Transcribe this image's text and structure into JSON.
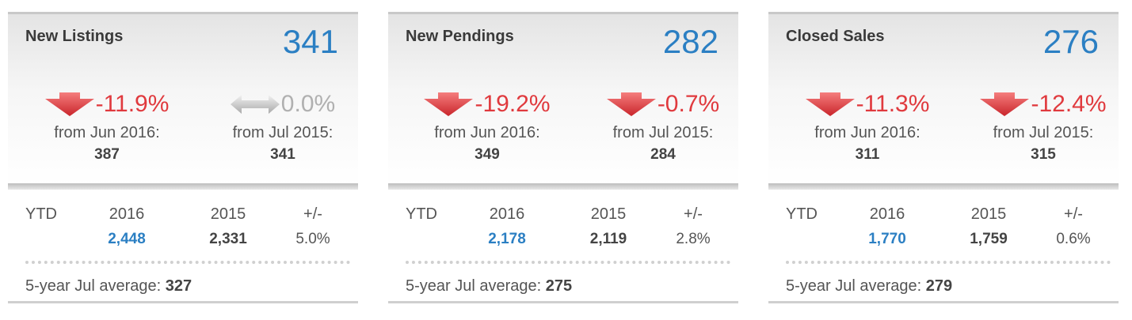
{
  "cards": [
    {
      "title": "New Listings",
      "value": "341",
      "changes": [
        {
          "direction": "down",
          "pct": "-11.9%",
          "label": "from Jun 2016:",
          "value": "387"
        },
        {
          "direction": "flat",
          "pct": "0.0%",
          "label": "from Jul 2015:",
          "value": "341"
        }
      ],
      "ytd": {
        "label": "YTD",
        "headers": [
          "2016",
          "2015",
          "+/-"
        ],
        "values": [
          "2,448",
          "2,331",
          "5.0%"
        ]
      },
      "average": {
        "label": "5-year Jul average:",
        "value": "327"
      }
    },
    {
      "title": "New Pendings",
      "value": "282",
      "changes": [
        {
          "direction": "down",
          "pct": "-19.2%",
          "label": "from Jun 2016:",
          "value": "349"
        },
        {
          "direction": "down",
          "pct": "-0.7%",
          "label": "from Jul 2015:",
          "value": "284"
        }
      ],
      "ytd": {
        "label": "YTD",
        "headers": [
          "2016",
          "2015",
          "+/-"
        ],
        "values": [
          "2,178",
          "2,119",
          "2.8%"
        ]
      },
      "average": {
        "label": "5-year Jul average:",
        "value": "275"
      }
    },
    {
      "title": "Closed Sales",
      "value": "276",
      "changes": [
        {
          "direction": "down",
          "pct": "-11.3%",
          "label": "from Jun 2016:",
          "value": "311"
        },
        {
          "direction": "down",
          "pct": "-12.4%",
          "label": "from Jul 2015:",
          "value": "315"
        }
      ],
      "ytd": {
        "label": "YTD",
        "headers": [
          "2016",
          "2015",
          "+/-"
        ],
        "values": [
          "1,770",
          "1,759",
          "0.6%"
        ]
      },
      "average": {
        "label": "5-year Jul average:",
        "value": "279"
      }
    }
  ]
}
